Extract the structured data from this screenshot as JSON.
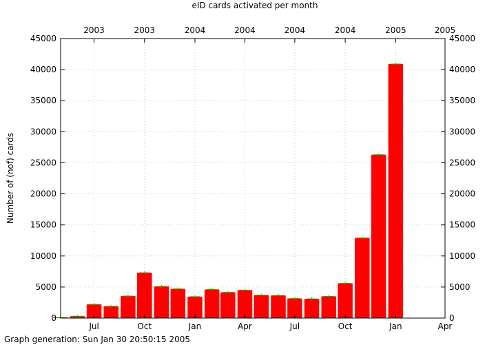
{
  "chart_data": {
    "type": "bar",
    "title": "eID cards activated per month",
    "ylabel": "Number of (nof) cards",
    "xlabel": "",
    "ylim": [
      0,
      45000
    ],
    "y_ticks": [
      0,
      5000,
      10000,
      15000,
      20000,
      25000,
      30000,
      35000,
      40000,
      45000
    ],
    "y_tick_labels": [
      "0",
      "5000",
      "10000",
      "15000",
      "20000",
      "25000",
      "30000",
      "35000",
      "40000",
      "45000"
    ],
    "x_range": [
      "2003-05-01",
      "2005-04-01"
    ],
    "x_ticks_bottom": [
      {
        "date": "2003-07-01",
        "label": "Jul"
      },
      {
        "date": "2003-10-01",
        "label": "Oct"
      },
      {
        "date": "2004-01-01",
        "label": "Jan"
      },
      {
        "date": "2004-04-01",
        "label": "Apr"
      },
      {
        "date": "2004-07-01",
        "label": "Jul"
      },
      {
        "date": "2004-10-01",
        "label": "Oct"
      },
      {
        "date": "2005-01-01",
        "label": "Jan"
      },
      {
        "date": "2005-04-01",
        "label": "Apr"
      }
    ],
    "x_ticks_top": [
      {
        "date": "2003-07-01",
        "label": "2003"
      },
      {
        "date": "2003-10-01",
        "label": "2003"
      },
      {
        "date": "2004-01-01",
        "label": "2004"
      },
      {
        "date": "2004-04-01",
        "label": "2004"
      },
      {
        "date": "2004-07-01",
        "label": "2004"
      },
      {
        "date": "2004-10-01",
        "label": "2004"
      },
      {
        "date": "2005-01-01",
        "label": "2005"
      },
      {
        "date": "2005-04-01",
        "label": "2005"
      }
    ],
    "bars": [
      {
        "month": "2003-05",
        "value": 100
      },
      {
        "month": "2003-06",
        "value": 300
      },
      {
        "month": "2003-07",
        "value": 2200
      },
      {
        "month": "2003-08",
        "value": 1900
      },
      {
        "month": "2003-09",
        "value": 3550
      },
      {
        "month": "2003-10",
        "value": 7300
      },
      {
        "month": "2003-11",
        "value": 5100
      },
      {
        "month": "2003-12",
        "value": 4700
      },
      {
        "month": "2004-01",
        "value": 3450
      },
      {
        "month": "2004-02",
        "value": 4600
      },
      {
        "month": "2004-03",
        "value": 4150
      },
      {
        "month": "2004-04",
        "value": 4500
      },
      {
        "month": "2004-05",
        "value": 3700
      },
      {
        "month": "2004-06",
        "value": 3650
      },
      {
        "month": "2004-07",
        "value": 3150
      },
      {
        "month": "2004-08",
        "value": 3100
      },
      {
        "month": "2004-09",
        "value": 3500
      },
      {
        "month": "2004-10",
        "value": 5600
      },
      {
        "month": "2004-11",
        "value": 12900
      },
      {
        "month": "2004-12",
        "value": 26300
      },
      {
        "month": "2005-01",
        "value": 40900
      }
    ],
    "bar_color": "#ff0000",
    "marker_color": "#00bb00",
    "grid": true,
    "grid_color": "#c8c8c8"
  },
  "footer": {
    "text": "Graph generation: Sun Jan 30 20:50:15 2005"
  }
}
